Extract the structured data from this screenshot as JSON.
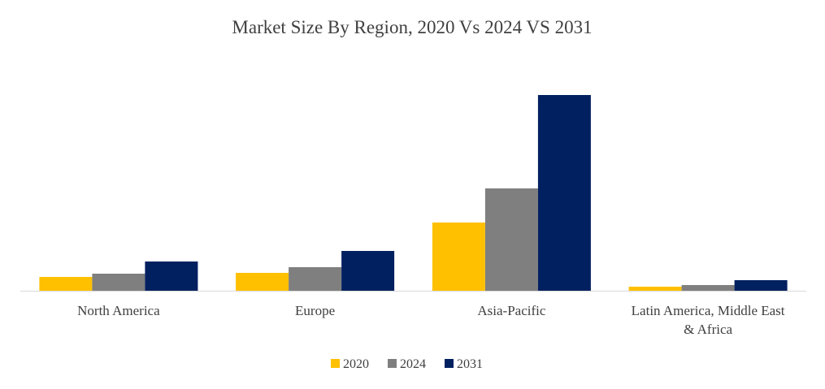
{
  "chart_data": {
    "type": "bar",
    "title": "Market Size By Region, 2020 Vs 2024 VS 2031",
    "categories": [
      [
        "North America"
      ],
      [
        "Europe"
      ],
      [
        "Asia-Pacific"
      ],
      [
        "Latin America, Middle East",
        "& Africa"
      ]
    ],
    "series": [
      {
        "name": "2020",
        "color": "#FFC000",
        "values": [
          17,
          22,
          84,
          5
        ]
      },
      {
        "name": "2024",
        "color": "#7F7F7F",
        "values": [
          21,
          29,
          126,
          7
        ]
      },
      {
        "name": "2031",
        "color": "#002060",
        "values": [
          36,
          49,
          241,
          13
        ]
      }
    ],
    "xlabel": "",
    "ylabel": "",
    "ylim": [
      0,
      260
    ],
    "grid": false,
    "axis_color": "#D9D9D9",
    "legend_position": "bottom"
  }
}
